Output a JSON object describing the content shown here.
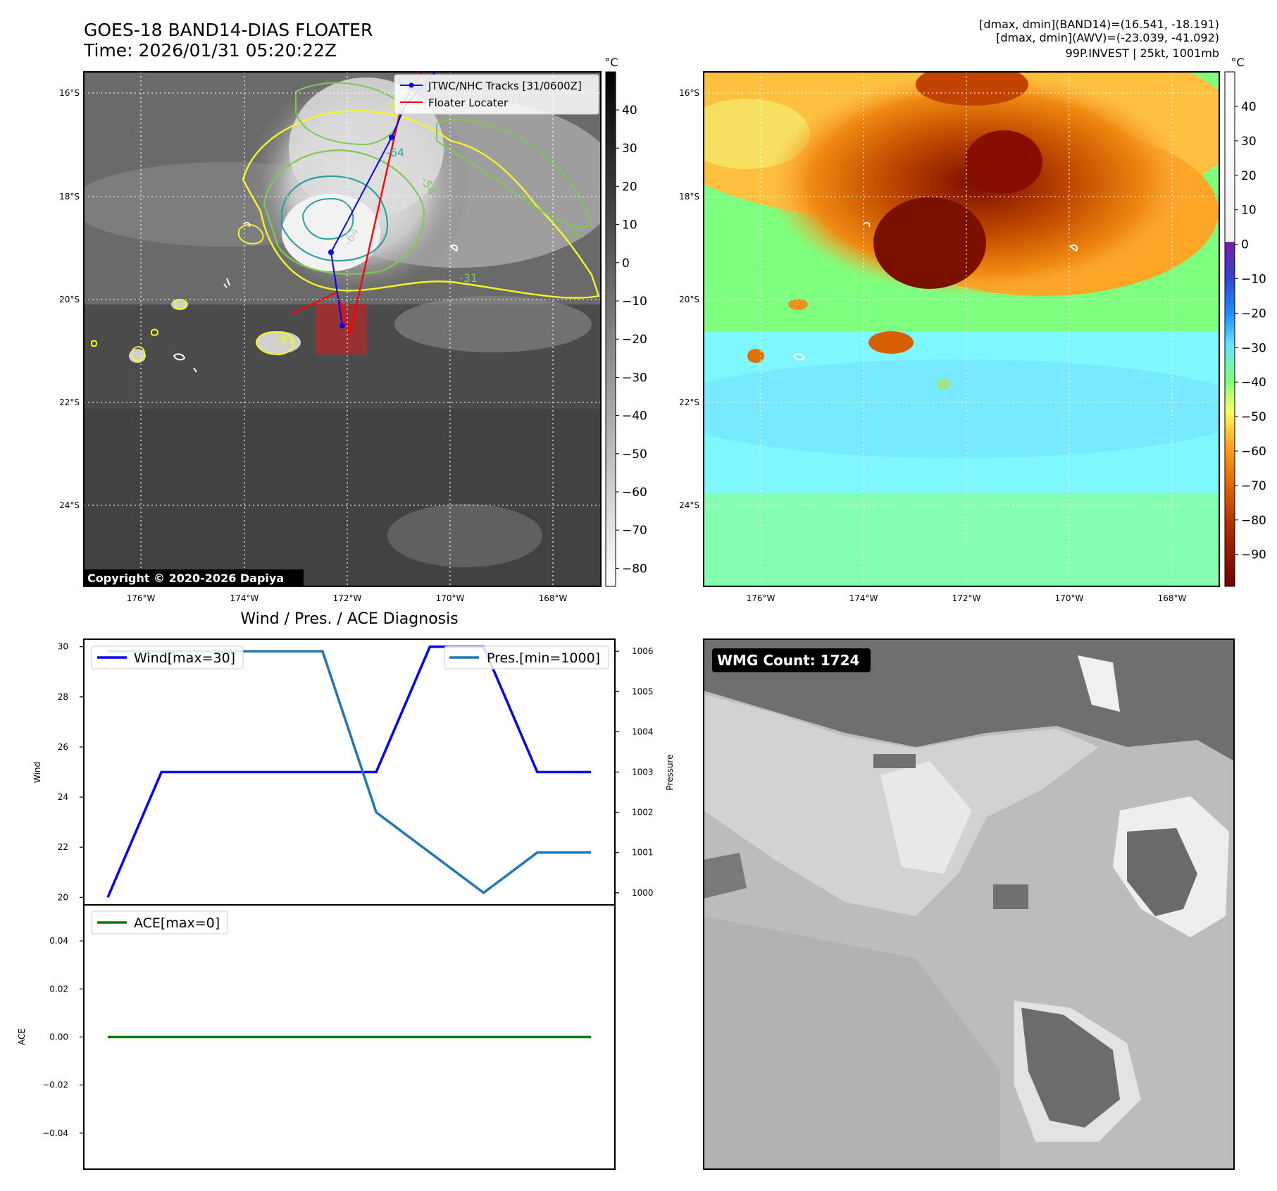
{
  "header": {
    "title_line1": "GOES-18 BAND14-DIAS FLOATER",
    "title_line2": "Time: 2026/01/31 05:20:22Z",
    "info_line1": "[dmax, dmin](BAND14)=(16.541, -18.191)",
    "info_line2": "[dmax, dmin](AWV)=(-23.039, -41.092)",
    "info_line3": "99P.INVEST | 25kt, 1001mb"
  },
  "maps": {
    "lat_ticks": [
      "16°S",
      "18°S",
      "20°S",
      "22°S",
      "24°S"
    ],
    "lon_ticks": [
      "176°W",
      "174°W",
      "172°W",
      "170°W",
      "168°W"
    ],
    "copyright": "Copyright © 2020-2026 Dapiya",
    "legend": {
      "track_label": "JTWC/NHC Tracks [31/0600Z]",
      "floater_label": "Floater Locater",
      "track_color": "#0000ff",
      "floater_color": "#ff0000"
    },
    "contour_labels": [
      "-64",
      "-54",
      "-31",
      "-31",
      "-31",
      "-31",
      "-64"
    ],
    "ir_colorbar": {
      "unit": "°C",
      "ticks": [
        "40",
        "30",
        "20",
        "10",
        "0",
        "−10",
        "−20",
        "−30",
        "−40",
        "−50",
        "−60",
        "−70",
        "−80"
      ]
    },
    "dias_colorbar": {
      "unit": "°C",
      "ticks": [
        "40",
        "30",
        "20",
        "10",
        "0",
        "−10",
        "−20",
        "−30",
        "−40",
        "−50",
        "−60",
        "−70",
        "−80",
        "−90"
      ]
    }
  },
  "wmg": {
    "label": "WMG Count: 1724"
  },
  "chart_data": [
    {
      "type": "line",
      "title": "Wind / Pres. / ACE Diagnosis",
      "x": [
        0,
        1,
        2,
        3,
        4,
        5,
        6,
        7,
        8,
        9
      ],
      "series": [
        {
          "name": "Wind[max=30]",
          "axis": "left",
          "color": "#0000ff",
          "values": [
            20,
            25,
            25,
            25,
            25,
            25,
            30,
            30,
            25,
            25
          ]
        },
        {
          "name": "Pres.[min=1000]",
          "axis": "right",
          "color": "#1f77b4",
          "values": [
            1006,
            1006,
            1006,
            1006,
            1006,
            1002,
            1001,
            1000,
            1001,
            1001
          ]
        }
      ],
      "ylabel_left": "Wind",
      "ylabel_right": "Pressure",
      "ylim_left": [
        19.7,
        30.3
      ],
      "ylim_right": [
        999.7,
        1006.3
      ],
      "yticks_left": [
        20,
        22,
        24,
        26,
        28,
        30
      ],
      "yticks_right": [
        1000,
        1001,
        1002,
        1003,
        1004,
        1005,
        1006
      ],
      "legend_left": "top-left",
      "legend_right": "top-right"
    },
    {
      "type": "line",
      "x": [
        0,
        1,
        2,
        3,
        4,
        5,
        6,
        7,
        8,
        9
      ],
      "series": [
        {
          "name": "ACE[max=0]",
          "color": "#008000",
          "values": [
            0,
            0,
            0,
            0,
            0,
            0,
            0,
            0,
            0,
            0
          ]
        }
      ],
      "ylabel": "ACE",
      "ylim": [
        -0.055,
        0.055
      ],
      "yticks": [
        0.04,
        0.02,
        0.0,
        -0.02,
        -0.04
      ],
      "ytick_labels": [
        "0.04",
        "0.02",
        "0.00",
        "−0.02",
        "−0.04"
      ],
      "legend": "top-left"
    }
  ]
}
